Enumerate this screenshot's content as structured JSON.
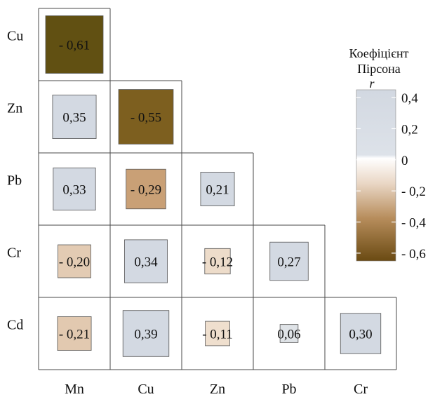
{
  "chart_data": {
    "type": "heatmap",
    "rows": [
      "Cu",
      "Zn",
      "Pb",
      "Cr",
      "Cd"
    ],
    "columns": [
      "Mn",
      "Cu",
      "Zn",
      "Pb",
      "Cr"
    ],
    "cells": [
      {
        "row": "Cu",
        "col": "Mn",
        "value": -0.61,
        "label": "- 0,61"
      },
      {
        "row": "Zn",
        "col": "Mn",
        "value": 0.35,
        "label": "0,35"
      },
      {
        "row": "Zn",
        "col": "Cu",
        "value": -0.55,
        "label": "- 0,55"
      },
      {
        "row": "Pb",
        "col": "Mn",
        "value": 0.33,
        "label": "0,33"
      },
      {
        "row": "Pb",
        "col": "Cu",
        "value": -0.29,
        "label": "- 0,29"
      },
      {
        "row": "Pb",
        "col": "Zn",
        "value": 0.21,
        "label": "0,21"
      },
      {
        "row": "Cr",
        "col": "Mn",
        "value": -0.2,
        "label": "- 0,20"
      },
      {
        "row": "Cr",
        "col": "Cu",
        "value": 0.34,
        "label": "0,34"
      },
      {
        "row": "Cr",
        "col": "Zn",
        "value": -0.12,
        "label": "- 0,12"
      },
      {
        "row": "Cr",
        "col": "Pb",
        "value": 0.27,
        "label": "0,27"
      },
      {
        "row": "Cd",
        "col": "Mn",
        "value": -0.21,
        "label": "- 0,21"
      },
      {
        "row": "Cd",
        "col": "Cu",
        "value": 0.39,
        "label": "0,39"
      },
      {
        "row": "Cd",
        "col": "Zn",
        "value": -0.11,
        "label": "- 0,11"
      },
      {
        "row": "Cd",
        "col": "Pb",
        "value": 0.06,
        "label": "0,06"
      },
      {
        "row": "Cd",
        "col": "Cr",
        "value": 0.3,
        "label": "0,30"
      }
    ],
    "colorbar": {
      "title_lines": [
        "Коефіцієнт",
        "Пірсона"
      ],
      "symbol": "r",
      "range": [
        -0.65,
        0.45
      ],
      "ticks": [
        {
          "value": 0.4,
          "label": "0,4"
        },
        {
          "value": 0.2,
          "label": "0,2"
        },
        {
          "value": 0,
          "label": "0"
        },
        {
          "value": -0.2,
          "label": "- 0,2"
        },
        {
          "value": -0.4,
          "label": "- 0,4"
        },
        {
          "value": -0.6,
          "label": "- 0,6"
        }
      ]
    },
    "colors": {
      "positive": "#d3d9e2",
      "zero": "#ffffff",
      "negative": "#5c4d10",
      "grid_line": "#4a4a4a"
    }
  }
}
